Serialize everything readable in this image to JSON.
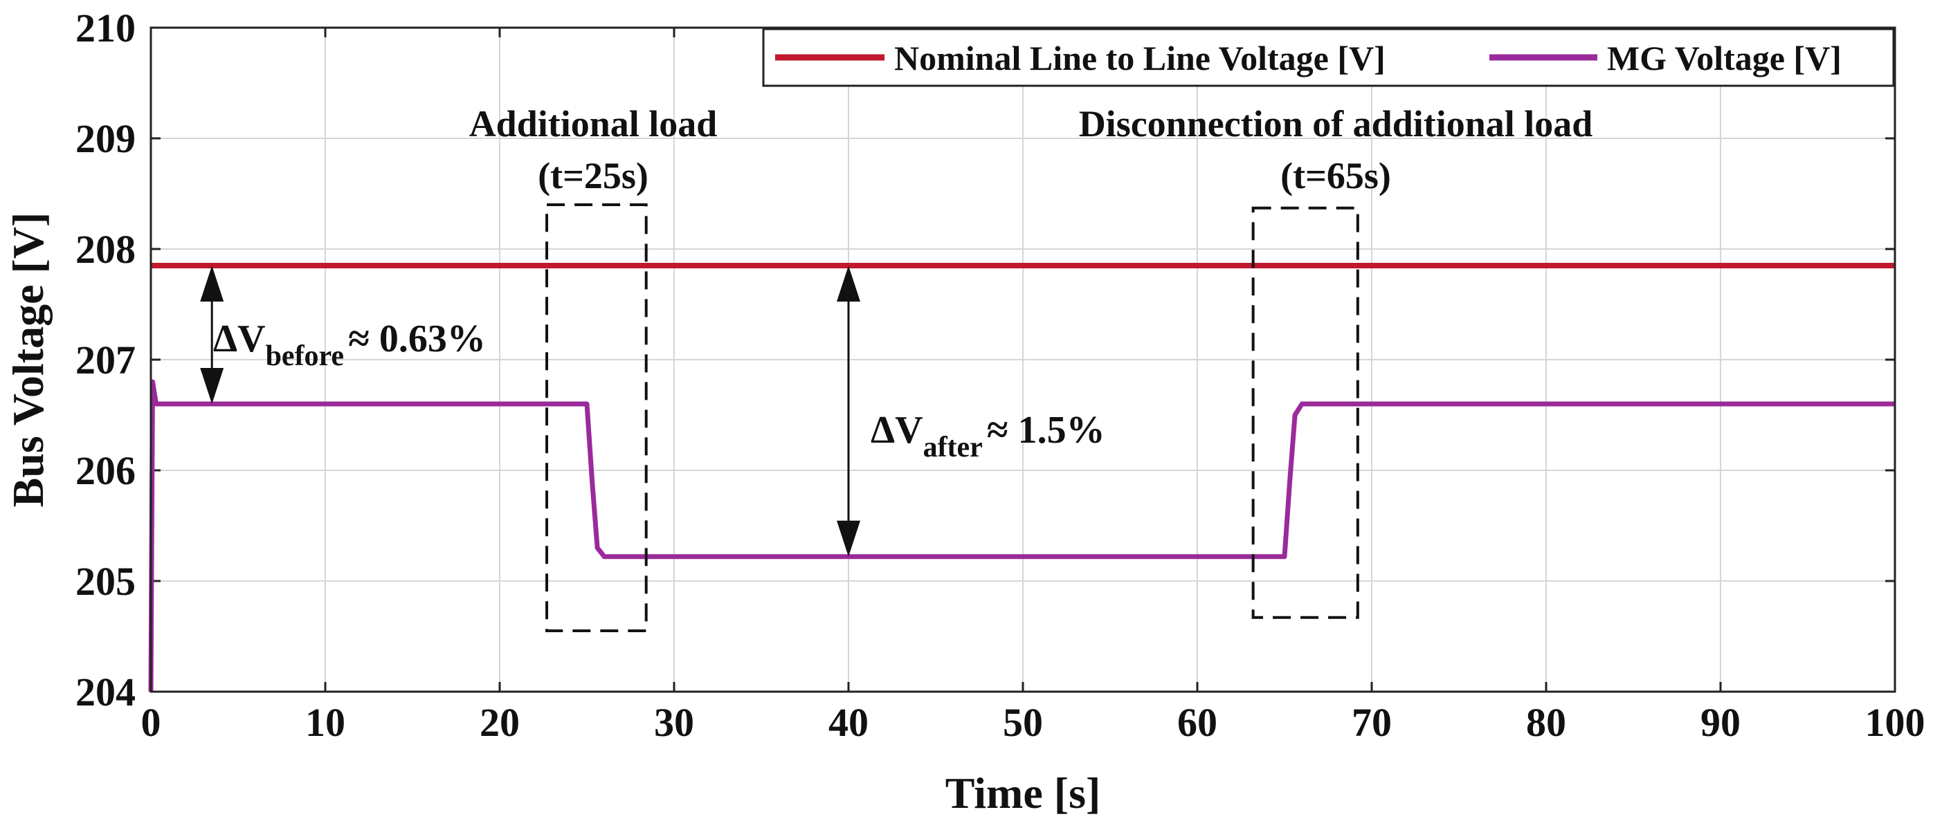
{
  "chart_data": {
    "type": "line",
    "title": "",
    "xlabel": "Time [s]",
    "ylabel": "Bus Voltage [V]",
    "xlim": [
      0,
      100
    ],
    "ylim": [
      204,
      210
    ],
    "grid": true,
    "legend_position": "top-right",
    "x_ticks": [
      "0",
      "10",
      "20",
      "30",
      "40",
      "50",
      "60",
      "70",
      "80",
      "90",
      "100"
    ],
    "y_ticks": [
      "204",
      "205",
      "206",
      "207",
      "208",
      "209",
      "210"
    ],
    "series": [
      {
        "name": "Nominal Line to Line Voltage [V]",
        "color": "#c0182d",
        "x": [
          0,
          100
        ],
        "y": [
          207.85,
          207.85
        ]
      },
      {
        "name": "MG Voltage [V]",
        "color": "#9b2a9b",
        "x": [
          0,
          0.1,
          0.2,
          0.3,
          1,
          25,
          25.3,
          25.6,
          26,
          65,
          65.3,
          65.6,
          66,
          100
        ],
        "y": [
          204,
          206.8,
          206.7,
          206.6,
          206.6,
          206.6,
          205.9,
          205.3,
          205.22,
          205.22,
          205.9,
          206.5,
          206.6,
          206.6
        ]
      }
    ],
    "annotations": {
      "event1_title": "Additional load",
      "event1_time": "(t=25s)",
      "event2_title": "Disconnection of additional load",
      "event2_time": "(t=65s)",
      "dv_before_main": "ΔV",
      "dv_before_sub": "before",
      "dv_before_value": "≈ 0.63%",
      "dv_after_main": "ΔV",
      "dv_after_sub": "after",
      "dv_after_value": "≈ 1.5%"
    },
    "annotation_data": {
      "event_box_1": {
        "x": [
          22.7,
          28.4
        ],
        "y": [
          204.55,
          208.4
        ]
      },
      "event_box_2": {
        "x": [
          63.2,
          69.2
        ],
        "y": [
          204.67,
          208.37
        ]
      },
      "dv_before_arrow": {
        "x": 3.5,
        "y": [
          206.6,
          207.85
        ]
      },
      "dv_after_arrow": {
        "x": 40,
        "y": [
          205.22,
          207.85
        ]
      }
    }
  }
}
